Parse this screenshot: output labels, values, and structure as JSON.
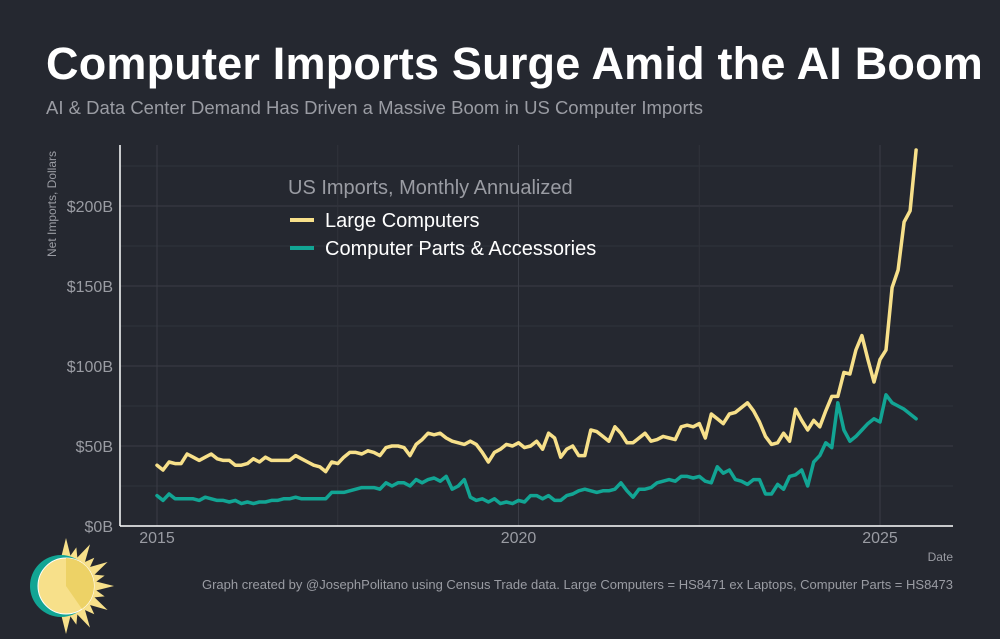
{
  "header": {
    "title": "Computer Imports Surge Amid the AI Boom",
    "subtitle": "AI & Data Center Demand Has Driven a Massive Boom in US Computer Imports"
  },
  "footer": {
    "credit": "Graph created by @JosephPolitano using Census Trade data. Large Computers = HS8471 ex Laptops, Computer Parts = HS8473"
  },
  "colors": {
    "background": "#252830",
    "large_computers": "#f7e08a",
    "computer_parts": "#12a594",
    "grid": "#3a3d46"
  },
  "chart_data": {
    "type": "line",
    "title": "Computer Imports Surge Amid the AI Boom",
    "xlabel": "Date",
    "ylabel": "Net Imports, Dollars",
    "legend_title": "US Imports, Monthly Annualized",
    "legend_position": "top-left",
    "grid": true,
    "x_start": "2015-01",
    "x_frequency": "monthly",
    "xlim": [
      2014.6,
      2026.1
    ],
    "ylim": [
      0,
      240
    ],
    "xticks": [
      2015,
      2020,
      2025
    ],
    "xtick_labels": [
      "2015",
      "2020",
      "2025"
    ],
    "yticks": [
      0,
      50,
      100,
      150,
      200
    ],
    "ytick_labels": [
      "$0B",
      "$50B",
      "$100B",
      "$150B",
      "$200B"
    ],
    "unit": "Billion USD",
    "series": [
      {
        "name": "Large Computers",
        "color": "#f7e08a",
        "values": [
          38,
          35,
          40,
          39,
          39,
          45,
          43,
          41,
          43,
          45,
          42,
          41,
          41,
          38,
          38,
          39,
          42,
          40,
          43,
          41,
          41,
          41,
          41,
          44,
          42,
          40,
          38,
          37,
          34,
          40,
          39,
          43,
          46,
          46,
          45,
          47,
          46,
          44,
          49,
          50,
          50,
          49,
          44,
          51,
          54,
          58,
          57,
          58,
          55,
          53,
          52,
          51,
          53,
          51,
          46,
          40,
          46,
          48,
          51,
          50,
          52,
          49,
          50,
          53,
          48,
          58,
          55,
          43,
          48,
          50,
          44,
          44,
          60,
          59,
          56,
          53,
          62,
          58,
          52,
          52,
          55,
          58,
          53,
          54,
          56,
          55,
          54,
          62,
          63,
          62,
          64,
          55,
          70,
          67,
          64,
          70,
          71,
          74,
          77,
          72,
          65,
          56,
          51,
          52,
          58,
          53,
          73,
          66,
          60,
          66,
          62,
          72,
          81,
          81,
          96,
          95,
          110,
          119,
          104,
          90,
          104,
          110,
          149,
          160,
          190,
          197,
          235
        ]
      },
      {
        "name": "Computer Parts & Accessories",
        "color": "#12a594",
        "values": [
          19,
          16,
          20,
          17,
          17,
          17,
          17,
          16,
          18,
          17,
          16,
          16,
          15,
          16,
          14,
          15,
          14,
          15,
          15,
          16,
          16,
          17,
          17,
          18,
          17,
          17,
          17,
          17,
          17,
          21,
          21,
          21,
          22,
          23,
          24,
          24,
          24,
          23,
          27,
          25,
          27,
          27,
          25,
          29,
          27,
          29,
          30,
          28,
          31,
          23,
          25,
          29,
          18,
          16,
          17,
          15,
          17,
          14,
          15,
          14,
          16,
          15,
          19,
          19,
          17,
          19,
          16,
          16,
          19,
          20,
          22,
          23,
          22,
          21,
          22,
          22,
          23,
          27,
          22,
          18,
          23,
          23,
          24,
          27,
          28,
          29,
          28,
          31,
          31,
          30,
          31,
          28,
          27,
          37,
          33,
          35,
          29,
          28,
          26,
          29,
          29,
          20,
          20,
          26,
          23,
          31,
          32,
          35,
          25,
          40,
          44,
          52,
          49,
          77,
          60,
          53,
          56,
          60,
          64,
          67,
          65,
          82,
          77,
          75,
          73,
          70,
          67
        ]
      }
    ]
  }
}
